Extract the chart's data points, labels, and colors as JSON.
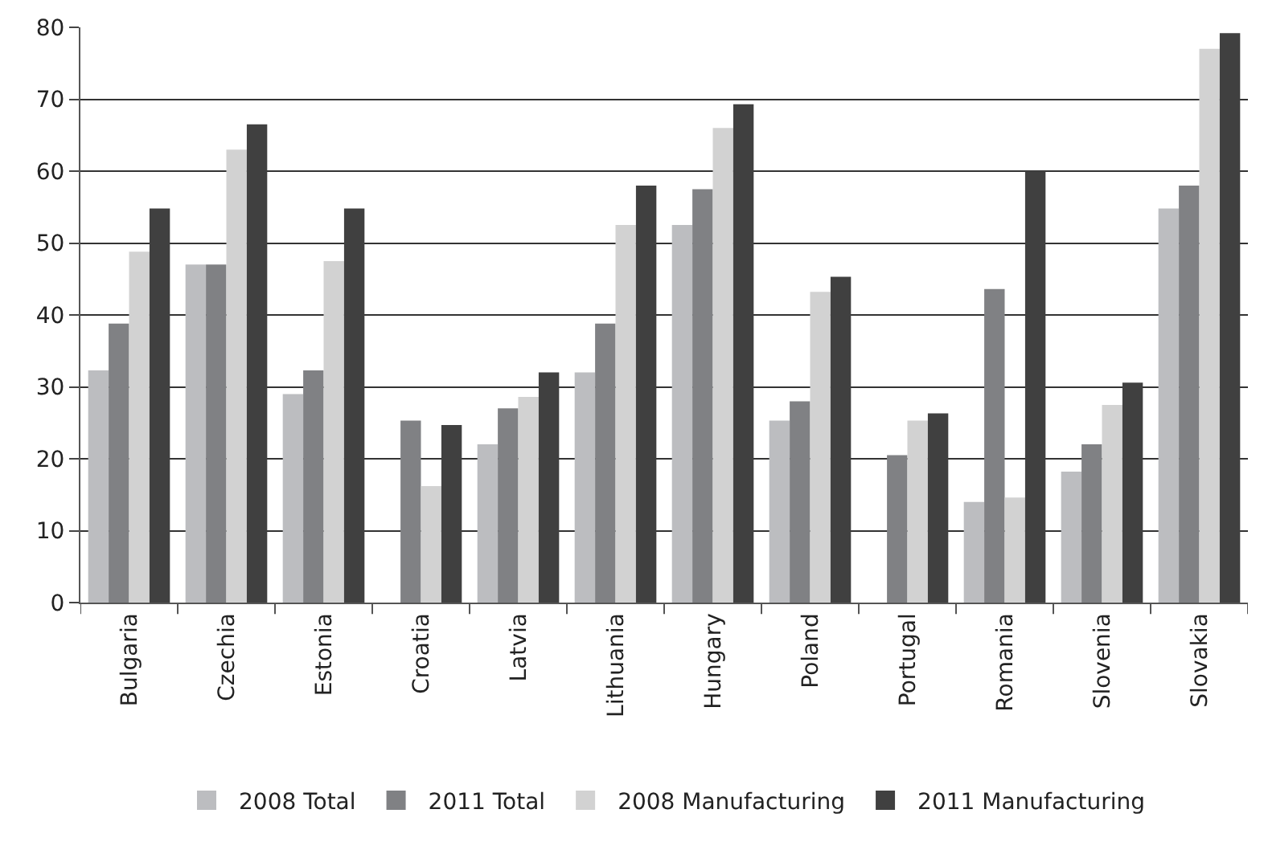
{
  "chart_data": {
    "type": "bar",
    "categories": [
      "Bulgaria",
      "Czechia",
      "Estonia",
      "Croatia",
      "Latvia",
      "Lithuania",
      "Hungary",
      "Poland",
      "Portugal",
      "Romania",
      "Slovenia",
      "Slovakia"
    ],
    "series": [
      {
        "name": "2008 Total",
        "color": "#bcbdc0",
        "values": [
          32.3,
          47,
          29,
          null,
          22,
          32,
          52.5,
          25.3,
          null,
          14,
          18.2,
          54.8
        ]
      },
      {
        "name": "2011 Total",
        "color": "#808184",
        "values": [
          38.8,
          47,
          32.3,
          25.3,
          27,
          38.8,
          57.5,
          28,
          20.5,
          43.6,
          22,
          58
        ]
      },
      {
        "name": "2008 Manufacturing",
        "color": "#d2d2d2",
        "values": [
          48.8,
          63,
          47.5,
          16.2,
          28.6,
          52.5,
          66,
          43.2,
          25.3,
          14.6,
          27.5,
          77
        ]
      },
      {
        "name": "2011 Manufacturing",
        "color": "#404040",
        "values": [
          54.8,
          66.5,
          54.8,
          24.7,
          32,
          58,
          69.3,
          45.3,
          26.3,
          60,
          30.6,
          79.2
        ]
      }
    ],
    "ylim": [
      0,
      80
    ],
    "yticks": [
      0,
      10,
      20,
      30,
      40,
      50,
      60,
      70,
      80
    ],
    "grid": "y",
    "legend": "bottom"
  }
}
